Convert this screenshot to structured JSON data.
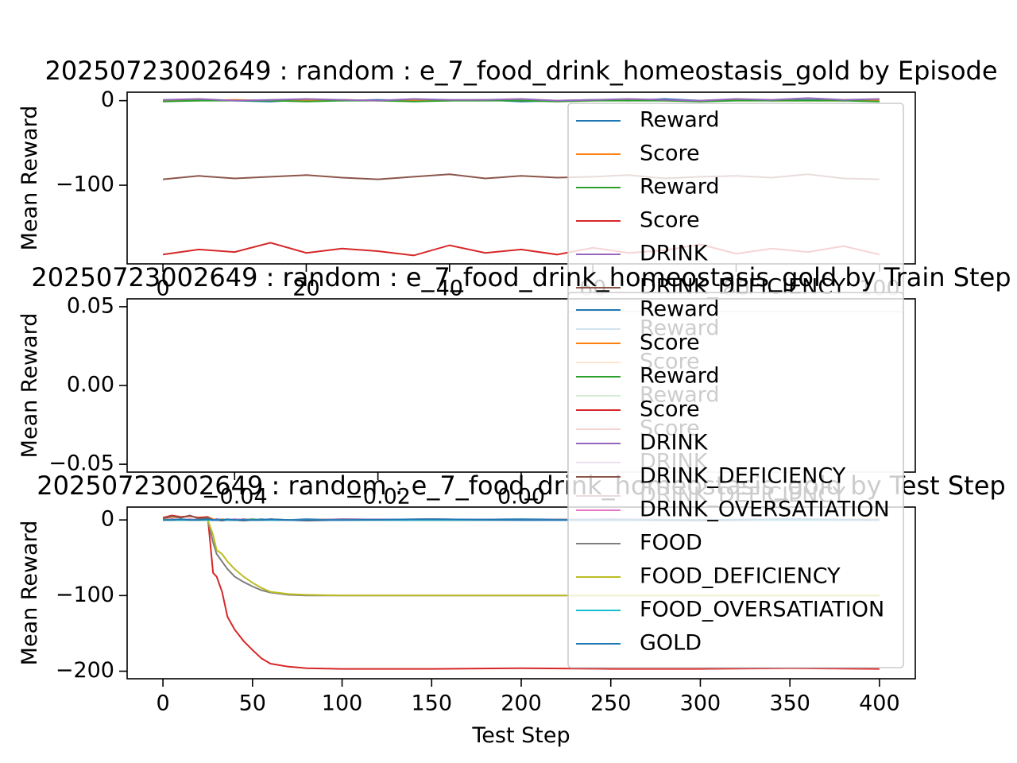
{
  "chart_data": [
    {
      "type": "line",
      "title": "20250723002649 : random : e_7_food_drink_homeostasis_gold by Episode",
      "ylabel": "Mean Reward",
      "x": [
        0,
        5,
        10,
        15,
        20,
        25,
        30,
        35,
        40,
        45,
        50,
        55,
        60,
        65,
        70,
        75,
        80,
        85,
        90,
        95,
        100
      ],
      "xlim": [
        -5,
        105
      ],
      "ylim": [
        -193,
        10
      ],
      "xticks": [
        0,
        20,
        40,
        60,
        80,
        100
      ],
      "yticks": [
        0,
        {
          "value": -100,
          "label": "−100"
        }
      ],
      "series": [
        {
          "name": "Reward",
          "color": "#1f77b4",
          "values": [
            0,
            1,
            0,
            -1,
            1,
            0,
            1,
            0,
            0,
            1,
            -1,
            0,
            1,
            0,
            2,
            0,
            1,
            0,
            1,
            0,
            1
          ]
        },
        {
          "name": "Score",
          "color": "#ff7f0e",
          "values": [
            0,
            0,
            1,
            0,
            0,
            1,
            0,
            0,
            0,
            1,
            0,
            0,
            0,
            1,
            0,
            0,
            1,
            0,
            0,
            0,
            1
          ]
        },
        {
          "name": "Reward",
          "color": "#2ca02c",
          "values": [
            -1,
            0,
            0,
            0,
            -1,
            0,
            0,
            -1,
            0,
            0,
            0,
            -1,
            0,
            0,
            0,
            -1,
            0,
            0,
            0,
            0,
            -1
          ]
        },
        {
          "name": "Score",
          "color": "#d62728",
          "values": [
            -182,
            -176,
            -179,
            -168,
            -180,
            -175,
            -178,
            -183,
            -171,
            -180,
            -176,
            -182,
            -174,
            -180,
            -177,
            -170,
            -181,
            -175,
            -179,
            -172,
            -182
          ]
        },
        {
          "name": "DRINK",
          "color": "#9467bd",
          "values": [
            1,
            2,
            0,
            1,
            2,
            1,
            0,
            2,
            1,
            1,
            2,
            0,
            1,
            2,
            1,
            0,
            2,
            1,
            3,
            1,
            2
          ]
        },
        {
          "name": "DRINK_DEFICIENCY",
          "color": "#8c564b",
          "values": [
            -93,
            -89,
            -92,
            -90,
            -88,
            -91,
            -93,
            -90,
            -87,
            -92,
            -89,
            -91,
            -90,
            -88,
            -92,
            -90,
            -89,
            -91,
            -87,
            -92,
            -93
          ]
        }
      ]
    },
    {
      "type": "line",
      "title": "20250723002649 : random : e_7_food_drink_homeostasis_gold by Train Step",
      "ylabel": "Mean Reward",
      "x": [],
      "xlim": [
        -0.055,
        0.055
      ],
      "ylim": [
        -0.055,
        0.055
      ],
      "xticks": [
        {
          "value": -0.04,
          "label": "−0.04"
        },
        {
          "value": -0.02,
          "label": "−0.02"
        },
        {
          "value": 0,
          "label": "0.00"
        }
      ],
      "yticks": [
        0.05,
        {
          "value": 0,
          "label": "0.00"
        },
        {
          "value": -0.05,
          "label": "−0.05"
        }
      ],
      "series": [
        {
          "name": "Reward",
          "color": "#1f77b4",
          "values": []
        },
        {
          "name": "Score",
          "color": "#ff7f0e",
          "values": []
        },
        {
          "name": "Reward",
          "color": "#2ca02c",
          "values": []
        },
        {
          "name": "Score",
          "color": "#d62728",
          "values": []
        },
        {
          "name": "DRINK",
          "color": "#9467bd",
          "values": []
        },
        {
          "name": "DRINK_DEFICIENCY",
          "color": "#8c564b",
          "values": []
        }
      ]
    },
    {
      "type": "line",
      "title": "20250723002649 : random : e_7_food_drink_homeostasis_gold by Test Step",
      "ylabel": "Mean Reward",
      "xlabel": "Test Step",
      "x": [
        0,
        5,
        10,
        15,
        20,
        25,
        28,
        30,
        33,
        36,
        40,
        45,
        50,
        55,
        60,
        70,
        80,
        100,
        150,
        200,
        250,
        300,
        350,
        400
      ],
      "xlim": [
        -20,
        420
      ],
      "ylim": [
        -210,
        17
      ],
      "xticks": [
        0,
        50,
        100,
        150,
        200,
        250,
        300,
        350,
        400
      ],
      "yticks": [
        0,
        {
          "value": -100,
          "label": "−100"
        },
        {
          "value": -200,
          "label": "−200"
        }
      ],
      "series": [
        {
          "name": "Reward",
          "color": "#1f77b4",
          "values": [
            0,
            1,
            0,
            1,
            0,
            1,
            0,
            0,
            1,
            0,
            1,
            0,
            0,
            1,
            0,
            0,
            1,
            0,
            0,
            1,
            0,
            0,
            1,
            0
          ]
        },
        {
          "name": "Score",
          "color": "#ff7f0e",
          "values": [
            2,
            4,
            3,
            5,
            3,
            4,
            1,
            0,
            1,
            0,
            0,
            1,
            0,
            0,
            1,
            0,
            0,
            1,
            0,
            0,
            1,
            0,
            0,
            1
          ]
        },
        {
          "name": "Reward",
          "color": "#2ca02c",
          "values": [
            0,
            0,
            1,
            0,
            0,
            0,
            0,
            1,
            0,
            0,
            0,
            0,
            1,
            0,
            0,
            0,
            0,
            0,
            1,
            0,
            0,
            0,
            0,
            0
          ]
        },
        {
          "name": "Score",
          "color": "#d62728",
          "values": [
            3,
            6,
            4,
            5,
            3,
            4,
            -70,
            -75,
            -95,
            -128,
            -145,
            -160,
            -172,
            -183,
            -190,
            -194,
            -196,
            -197,
            -197,
            -196,
            -197,
            -197,
            -196,
            -197
          ]
        },
        {
          "name": "DRINK",
          "color": "#9467bd",
          "values": [
            0,
            1,
            0,
            0,
            1,
            0,
            0,
            1,
            0,
            0,
            0,
            1,
            0,
            0,
            1,
            0,
            0,
            1,
            0,
            0,
            1,
            0,
            0,
            0
          ]
        },
        {
          "name": "DRINK_DEFICIENCY",
          "color": "#8c564b",
          "values": [
            2,
            5,
            3,
            6,
            2,
            3,
            0,
            0,
            -1,
            0,
            0,
            -1,
            0,
            0,
            0,
            0,
            -1,
            0,
            0,
            0,
            0,
            -1,
            0,
            0
          ]
        },
        {
          "name": "DRINK_OVERSATIATION",
          "color": "#e377c2",
          "values": [
            0,
            0,
            0,
            1,
            0,
            0,
            0,
            0,
            0,
            0,
            1,
            0,
            0,
            0,
            0,
            0,
            0,
            0,
            1,
            0,
            0,
            0,
            0,
            0
          ]
        },
        {
          "name": "FOOD",
          "color": "#7f7f7f",
          "values": [
            0,
            0,
            0,
            0,
            0,
            0,
            -30,
            -45,
            -55,
            -65,
            -75,
            -82,
            -88,
            -93,
            -96,
            -99,
            -100,
            -100,
            -100,
            -100,
            -100,
            -100,
            -100,
            -100
          ]
        },
        {
          "name": "FOOD_DEFICIENCY",
          "color": "#bcbd22",
          "values": [
            0,
            0,
            0,
            0,
            0,
            0,
            -20,
            -40,
            -45,
            -55,
            -65,
            -75,
            -83,
            -90,
            -95,
            -98,
            -99,
            -100,
            -100,
            -100,
            -100,
            -100,
            -100,
            -100
          ]
        },
        {
          "name": "FOOD_OVERSATIATION",
          "color": "#17becf",
          "values": [
            0,
            0,
            0,
            0,
            0,
            0,
            0,
            0,
            0,
            0,
            0,
            0,
            0,
            0,
            0,
            0,
            0,
            0,
            0,
            0,
            0,
            0,
            0,
            0
          ]
        },
        {
          "name": "GOLD",
          "color": "#1f77b4",
          "values": [
            0,
            0,
            1,
            0,
            0,
            1,
            0,
            0,
            0,
            1,
            0,
            0,
            0,
            0,
            1,
            0,
            0,
            0,
            1,
            0,
            0,
            0,
            1,
            0
          ]
        }
      ]
    }
  ]
}
